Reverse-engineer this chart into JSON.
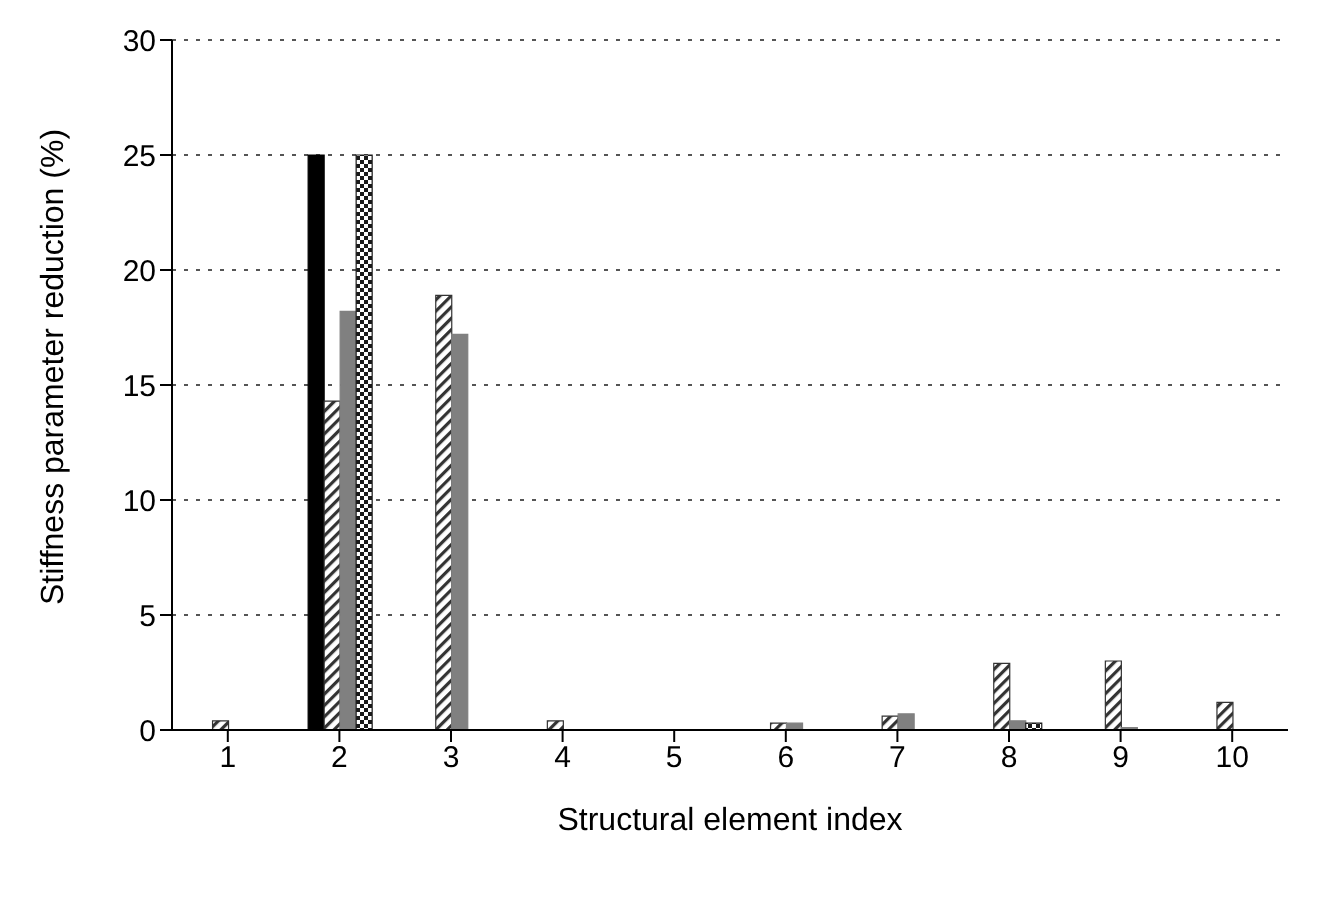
{
  "chart_data": {
    "type": "bar",
    "xlabel": "Structural element index",
    "ylabel": "Stiffness parameter reduction (%)",
    "categories": [
      "1",
      "2",
      "3",
      "4",
      "5",
      "6",
      "7",
      "8",
      "9",
      "10"
    ],
    "series": [
      {
        "color": "#000000",
        "values": [
          0,
          25,
          0,
          0,
          0,
          0,
          0,
          0,
          0,
          0
        ]
      },
      {
        "color": "#333333",
        "values": [
          0.4,
          14.3,
          18.9,
          0.4,
          0,
          0.3,
          0.6,
          2.9,
          3.0,
          1.2
        ]
      },
      {
        "color": "#808080",
        "values": [
          0,
          18.2,
          17.2,
          0,
          0,
          0.3,
          0.7,
          0.4,
          0.1,
          0
        ]
      },
      {
        "color": "#1a1a1a",
        "values": [
          0,
          25,
          0,
          0,
          0,
          0,
          0,
          0.3,
          0,
          0
        ]
      }
    ],
    "ylim": [
      0,
      30
    ],
    "yticks": [
      0,
      5,
      10,
      15,
      20,
      25,
      30
    ],
    "grid": "y",
    "legend": false
  }
}
